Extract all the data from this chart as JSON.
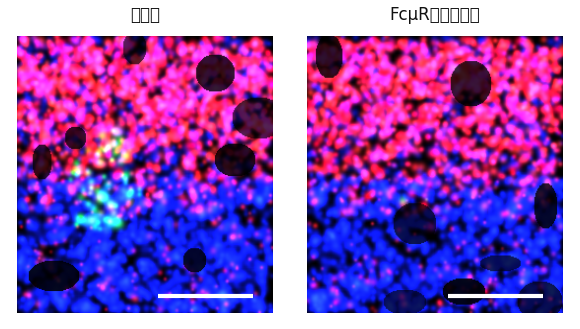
{
  "title_left": "野生型",
  "title_right": "FcμR欠損マウス",
  "title_fontsize": 12,
  "title_color": "#111111",
  "bg_color": "#ffffff",
  "fig_width": 5.8,
  "fig_height": 3.29,
  "dpi": 100,
  "scale_bar_color": "#ffffff",
  "scale_bar_linewidth": 3
}
